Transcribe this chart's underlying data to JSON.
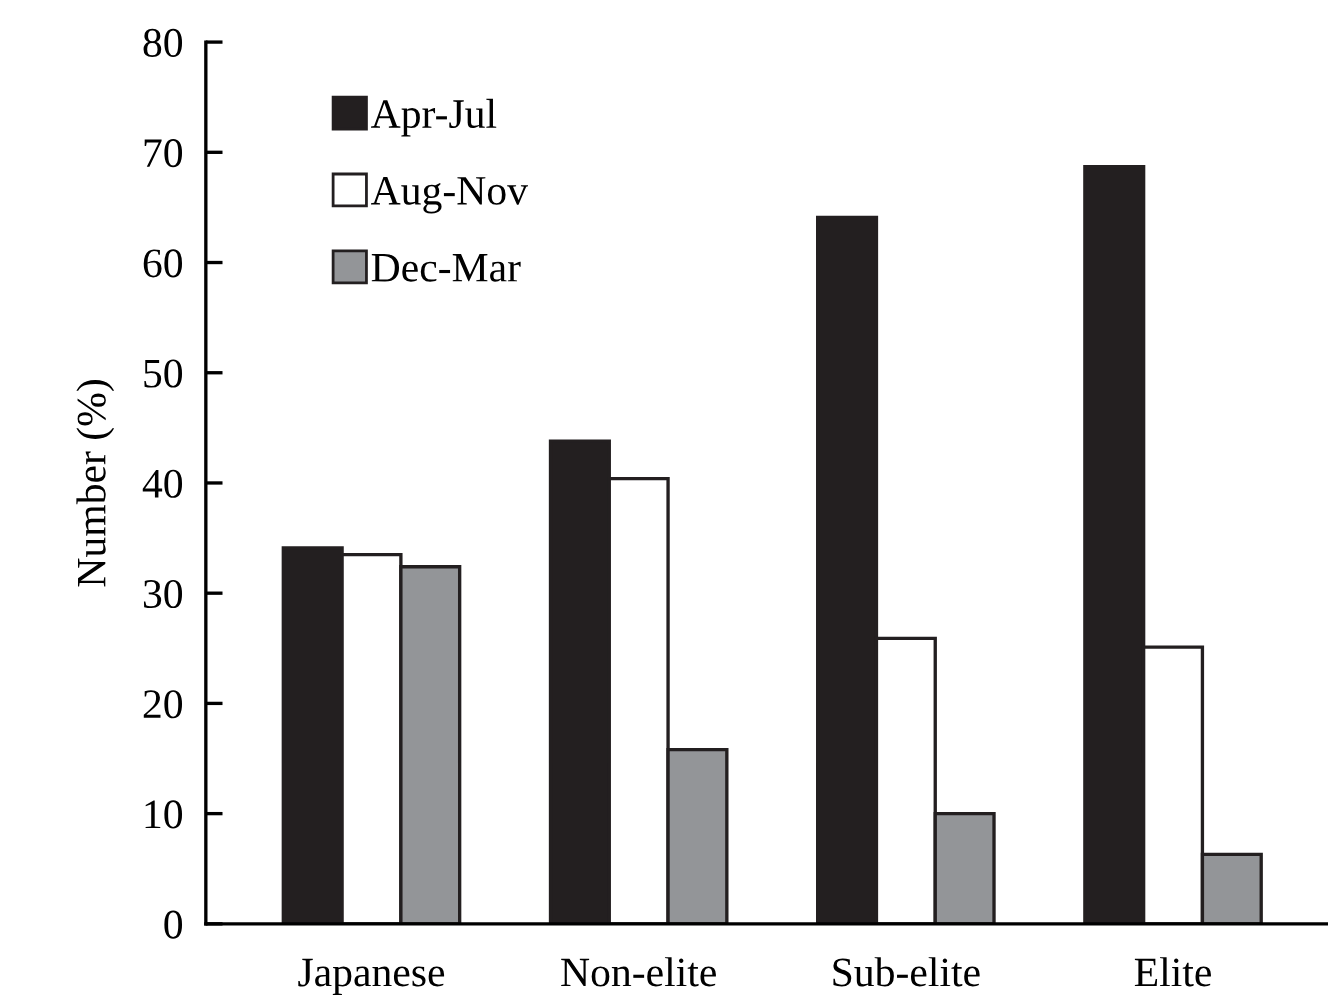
{
  "chart_data": {
    "type": "bar",
    "ylabel": "Number (%)",
    "categories": [
      "Japanese",
      "Non-elite",
      "Sub-elite",
      "Elite"
    ],
    "series": [
      {
        "name": "Apr-Jul",
        "color": "#231f20",
        "values": [
          34.1,
          43.8,
          64.1,
          68.7
        ]
      },
      {
        "name": "Aug-Nov",
        "color": "#ffffff",
        "values": [
          33.5,
          40.4,
          25.9,
          25.1
        ]
      },
      {
        "name": "Dec-Mar",
        "color": "#939598",
        "values": [
          32.4,
          15.8,
          10.0,
          6.3
        ]
      }
    ],
    "ylim": [
      0,
      80
    ],
    "yticks": [
      0,
      10,
      20,
      30,
      40,
      50,
      60,
      70,
      80
    ],
    "grid": false,
    "legend": "top left"
  }
}
